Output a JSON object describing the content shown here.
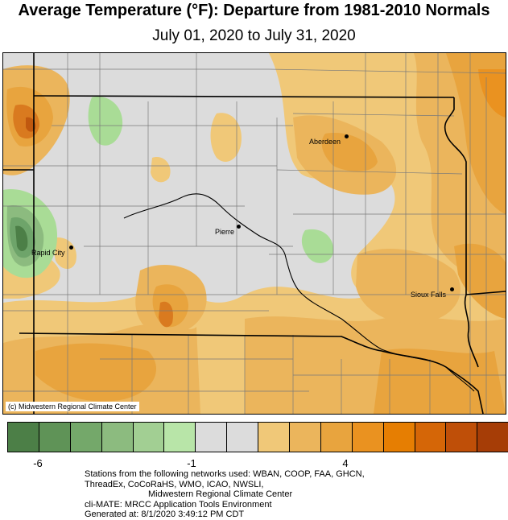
{
  "title": "Average Temperature (°F): Departure from 1981-2010 Normals",
  "subtitle": "July 01, 2020 to July 31, 2020",
  "map": {
    "credit": "(c) Midwestern Regional Climate Center",
    "cities": [
      {
        "name": "Aberdeen"
      },
      {
        "name": "Pierre"
      },
      {
        "name": "Rapid City"
      },
      {
        "name": "Sioux Falls"
      }
    ],
    "colors": {
      "background_gray": "#dcdcdc",
      "light_orange": "#f0c878",
      "orange": "#e9a347",
      "dark_orange": "#d97a1f",
      "light_green": "#a9dc96",
      "green": "#6ea46a",
      "dark_green": "#4c7f47"
    }
  },
  "legend": {
    "colors": [
      "#4c7f47",
      "#5f9357",
      "#74a86a",
      "#8cbb7f",
      "#a2cf93",
      "#b8e5a8",
      "#dcdcdc",
      "#dcdcdc",
      "#f0c878",
      "#ebb55c",
      "#e8a43e",
      "#ea9220",
      "#e67e02",
      "#d56607",
      "#bf4f08",
      "#a63d06"
    ],
    "tick_labels": [
      "-6",
      "-1",
      "4"
    ]
  },
  "footer": {
    "line1": "Stations from the following networks used: WBAN, COOP, FAA, GHCN,",
    "line2": "ThreadEx, CoCoRaHS, WMO, ICAO, NWSLI,",
    "line3": "Midwestern Regional Climate Center",
    "line4": "cli-MATE: MRCC Application Tools Environment",
    "line5": "Generated at: 8/1/2020 3:49:12 PM CDT"
  }
}
